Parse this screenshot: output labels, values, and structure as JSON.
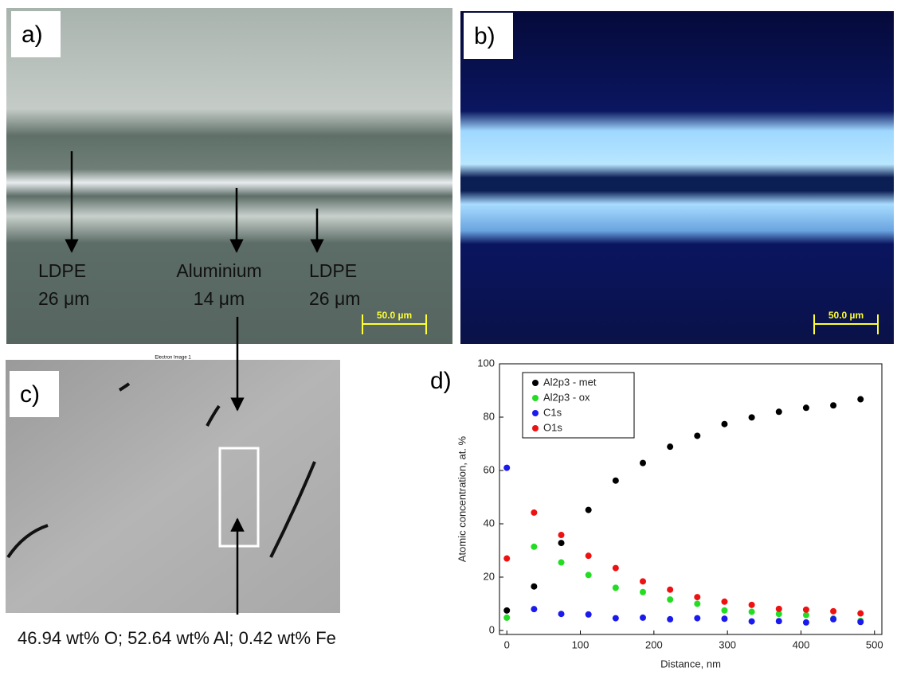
{
  "panels": {
    "a": {
      "label": "a)",
      "annotations": [
        {
          "name": "LDPE",
          "thickness": "26 μm"
        },
        {
          "name": "Aluminium",
          "thickness": "14 μm"
        },
        {
          "name": "LDPE",
          "thickness": "26 μm"
        }
      ],
      "scale_bar": "50.0 µm"
    },
    "b": {
      "label": "b)",
      "scale_bar": "50.0 µm"
    },
    "c": {
      "label": "c)",
      "image_title": "Electron Image 1",
      "composition": "46.94 wt% O; 52.64 wt% Al; 0.42 wt% Fe"
    }
  },
  "chart_data": {
    "type": "scatter",
    "label": "d)",
    "x_label": "Distance, nm",
    "y_label": "Atomic concentration, at. %",
    "x": [
      0,
      37,
      74,
      111,
      148,
      185,
      222,
      259,
      296,
      333,
      370,
      407,
      444,
      481
    ],
    "series": [
      {
        "name": "Al2p3 - met",
        "color": "#000000",
        "values": [
          7.5,
          16.5,
          32.8,
          45.2,
          56.2,
          62.8,
          68.9,
          73,
          77.4,
          79.9,
          82,
          83.5,
          84.4,
          86.7
        ]
      },
      {
        "name": "Al2p3 - ox",
        "color": "#22dd22",
        "values": [
          4.8,
          31.4,
          25.5,
          20.8,
          16,
          14.4,
          11.6,
          10,
          7.5,
          7,
          6.2,
          5.8,
          4.5,
          3.6
        ]
      },
      {
        "name": "C1s",
        "color": "#1a1aee",
        "values": [
          61,
          8,
          6.2,
          6,
          4.6,
          4.8,
          4.2,
          4.6,
          4.4,
          3.4,
          3.5,
          3,
          4.2,
          3.2
        ]
      },
      {
        "name": "O1s",
        "color": "#ee1111",
        "values": [
          27,
          44.2,
          35.8,
          28,
          23.4,
          18.4,
          15.3,
          12.5,
          10.8,
          9.6,
          8.1,
          7.8,
          7.2,
          6.4
        ]
      }
    ],
    "xlim": [
      -10,
      510
    ],
    "ylim": [
      -1.5,
      100
    ],
    "xticks": [
      0,
      100,
      200,
      300,
      400,
      500
    ],
    "yticks": [
      0,
      20,
      40,
      60,
      80,
      100
    ]
  }
}
